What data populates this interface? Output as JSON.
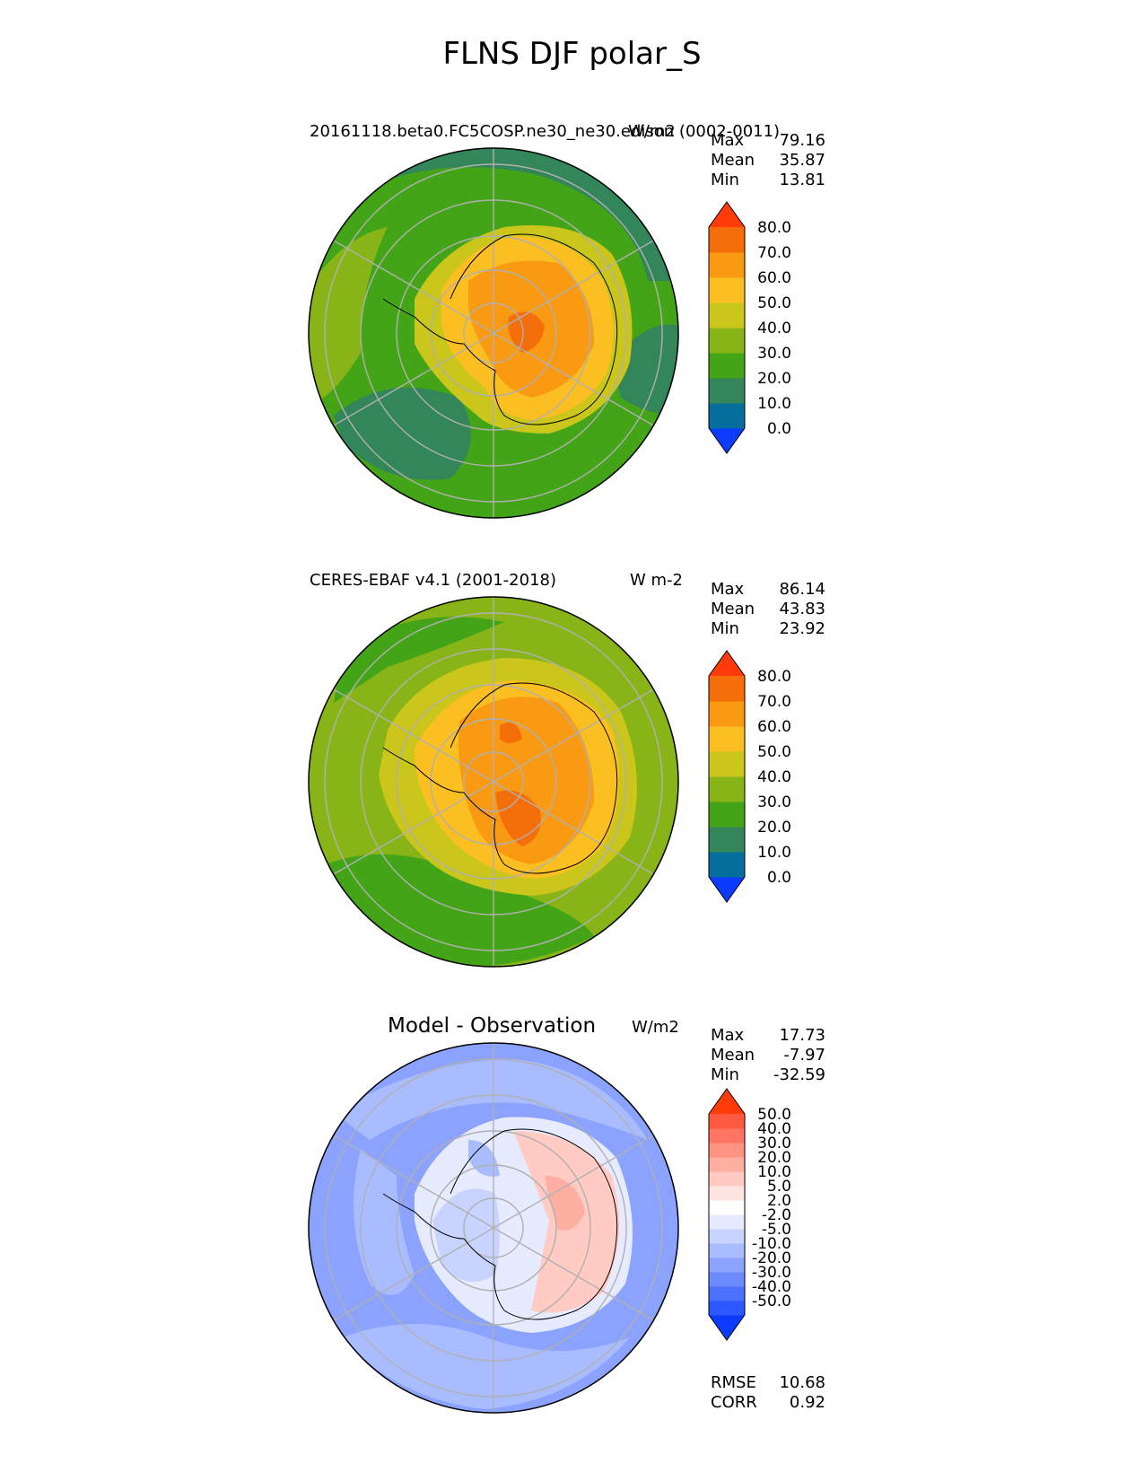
{
  "suptitle": "FLNS DJF polar_S",
  "colors": {
    "land_ocean": [
      "#0b3bff",
      "#056e9c",
      "#33855a",
      "#43a418",
      "#89b418",
      "#cac61b",
      "#fbbf21",
      "#fa9a12",
      "#f46e0a",
      "#ff3b0a"
    ],
    "diff": [
      "#0b3bff",
      "#2c56ff",
      "#4d71ff",
      "#6b8bff",
      "#8ba3ff",
      "#a9bcff",
      "#c8d4ff",
      "#e6ebff",
      "#ffffff",
      "#ffe5e1",
      "#ffcbc2",
      "#ffafa1",
      "#ff9381",
      "#ff7562",
      "#ff5a3f",
      "#ff3b0a"
    ]
  },
  "panels": [
    {
      "title": "20161118.beta0.FC5COSP.ne30_ne30.edison (0002-0011)",
      "units": "W/m2",
      "stats": [
        {
          "label": "Max",
          "value": "79.16"
        },
        {
          "label": "Mean",
          "value": "35.87"
        },
        {
          "label": "Min",
          "value": "13.81"
        }
      ],
      "colorbar_ticks": [
        "80.0",
        "70.0",
        "60.0",
        "50.0",
        "40.0",
        "30.0",
        "20.0",
        "10.0",
        "0.0"
      ]
    },
    {
      "title": "CERES-EBAF v4.1 (2001-2018)",
      "units": "W m-2",
      "stats": [
        {
          "label": "Max",
          "value": "86.14"
        },
        {
          "label": "Mean",
          "value": "43.83"
        },
        {
          "label": "Min",
          "value": "23.92"
        }
      ],
      "colorbar_ticks": [
        "80.0",
        "70.0",
        "60.0",
        "50.0",
        "40.0",
        "30.0",
        "20.0",
        "10.0",
        "0.0"
      ]
    },
    {
      "title": "Model - Observation",
      "units": "W/m2",
      "stats": [
        {
          "label": "Max",
          "value": "17.73"
        },
        {
          "label": "Mean",
          "value": "-7.97"
        },
        {
          "label": "Min",
          "value": "-32.59"
        }
      ],
      "colorbar_ticks": [
        "50.0",
        "40.0",
        "30.0",
        "20.0",
        "10.0",
        "5.0",
        "2.0",
        "-2.0",
        "-5.0",
        "-10.0",
        "-20.0",
        "-30.0",
        "-40.0",
        "-50.0"
      ],
      "metrics": [
        {
          "label": "RMSE",
          "value": "10.68"
        },
        {
          "label": "CORR",
          "value": "0.92"
        }
      ]
    }
  ],
  "chart_data": [
    {
      "type": "heatmap",
      "projection": "south polar stereographic",
      "title": "20161118.beta0.FC5COSP.ne30_ne30.edison (0002-0011)",
      "units": "W/m2",
      "levels": [
        0,
        10,
        20,
        30,
        40,
        50,
        60,
        70,
        80
      ],
      "fields": [
        {
          "name": "ocean_ring",
          "value": 25
        },
        {
          "name": "coast_band",
          "value": 42
        },
        {
          "name": "antarctica_interior",
          "value": 65
        },
        {
          "name": "plateau_max",
          "value": 75
        }
      ]
    },
    {
      "type": "heatmap",
      "projection": "south polar stereographic",
      "title": "CERES-EBAF v4.1 (2001-2018)",
      "units": "W m-2",
      "levels": [
        0,
        10,
        20,
        30,
        40,
        50,
        60,
        70,
        80
      ],
      "fields": [
        {
          "name": "ocean_ring",
          "value": 35
        },
        {
          "name": "coast_band",
          "value": 48
        },
        {
          "name": "antarctica_interior",
          "value": 62
        },
        {
          "name": "plateau_max",
          "value": 78
        }
      ]
    },
    {
      "type": "heatmap",
      "projection": "south polar stereographic",
      "title": "Model - Observation",
      "units": "W/m2",
      "levels": [
        -50,
        -40,
        -30,
        -20,
        -10,
        -5,
        -2,
        2,
        5,
        10,
        20,
        30,
        40,
        50
      ],
      "fields": [
        {
          "name": "ocean_ring",
          "value": -12
        },
        {
          "name": "coast_band",
          "value": -3
        },
        {
          "name": "east_antarctica",
          "value": 8
        },
        {
          "name": "west_antarctica",
          "value": -8
        }
      ]
    }
  ]
}
